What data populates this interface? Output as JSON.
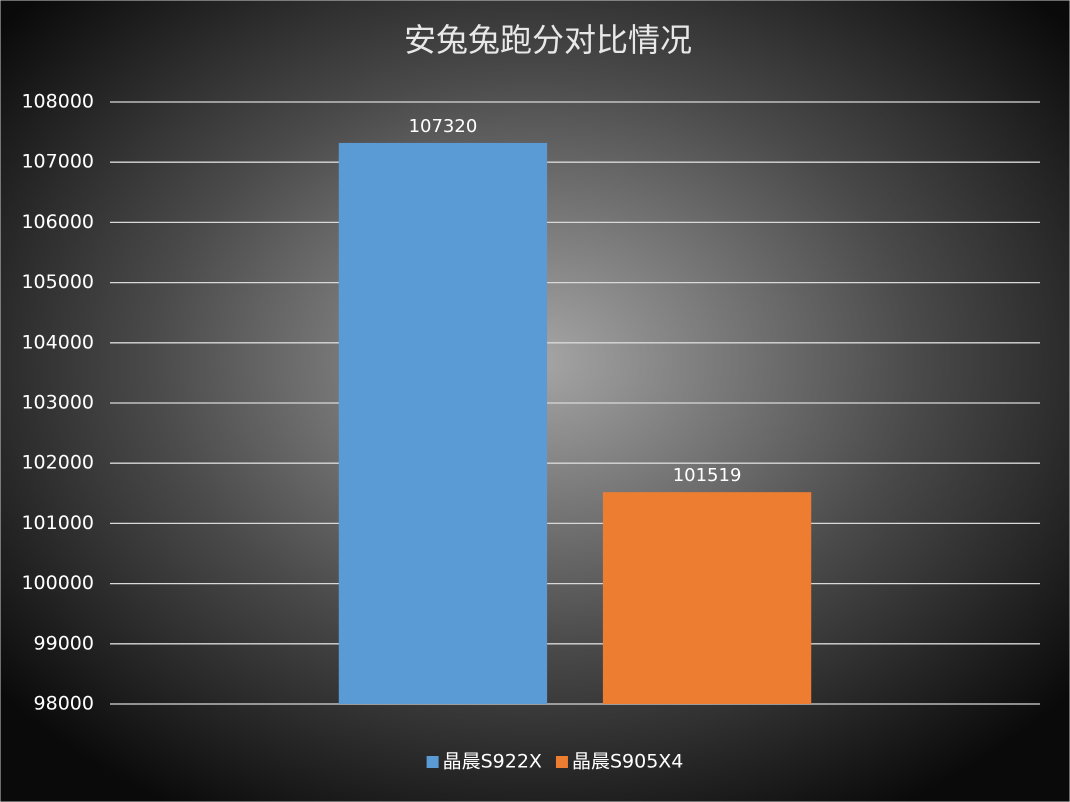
{
  "chart_data": {
    "type": "bar",
    "title": "安兔兔跑分对比情况",
    "categories": [
      null
    ],
    "series": [
      {
        "name": "晶晨S922X",
        "color": "#5b9bd5",
        "values": [
          107320
        ]
      },
      {
        "name": "晶晨S905X4",
        "color": "#ed7d31",
        "values": [
          101519
        ]
      }
    ],
    "ylim": [
      98000,
      108000
    ],
    "yticks": [
      98000,
      99000,
      100000,
      101000,
      102000,
      103000,
      104000,
      105000,
      106000,
      107000,
      108000
    ],
    "grid": true,
    "legend": "bottom"
  }
}
